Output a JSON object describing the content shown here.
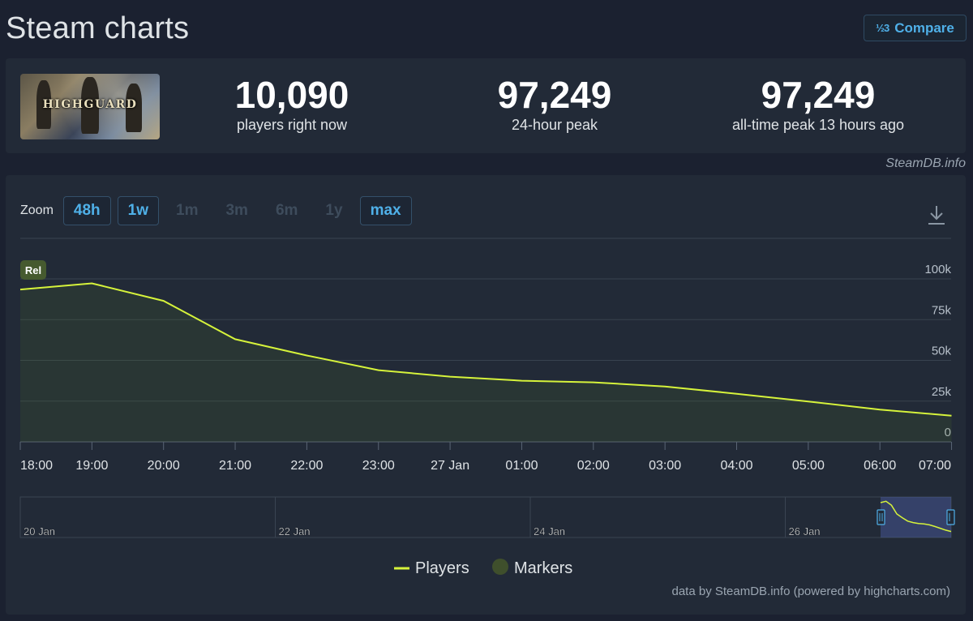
{
  "header": {
    "title": "Steam charts",
    "compare_icon": "1⁄2 3",
    "compare_label": "Compare"
  },
  "game": {
    "logo_text": "HIGHGUARD"
  },
  "stats": [
    {
      "value": "10,090",
      "label": "players right now"
    },
    {
      "value": "97,249",
      "label": "24-hour peak"
    },
    {
      "value": "97,249",
      "label": "all-time peak 13 hours ago"
    }
  ],
  "credit_top": "SteamDB.info",
  "zoom": {
    "label": "Zoom",
    "buttons": [
      {
        "label": "48h",
        "active": true
      },
      {
        "label": "1w",
        "active": true
      },
      {
        "label": "1m",
        "active": false
      },
      {
        "label": "3m",
        "active": false
      },
      {
        "label": "6m",
        "active": false
      },
      {
        "label": "1y",
        "active": false
      },
      {
        "label": "max",
        "active": true
      }
    ]
  },
  "marker": {
    "label": "Rel"
  },
  "chart_data": {
    "type": "area",
    "title": "",
    "xlabel": "",
    "ylabel": "",
    "x_ticks": [
      "18:00",
      "19:00",
      "20:00",
      "21:00",
      "22:00",
      "23:00",
      "27 Jan",
      "01:00",
      "02:00",
      "03:00",
      "04:00",
      "05:00",
      "06:00",
      "07:00"
    ],
    "y_ticks": [
      "0",
      "25k",
      "50k",
      "75k",
      "100k"
    ],
    "ylim": [
      0,
      100000
    ],
    "series": [
      {
        "name": "Players",
        "color": "#d6f33b",
        "x": [
          "18:00",
          "19:00",
          "20:00",
          "21:00",
          "22:00",
          "23:00",
          "27 Jan",
          "01:00",
          "02:00",
          "03:00",
          "04:00",
          "05:00",
          "06:00",
          "07:00"
        ],
        "values": [
          93500,
          97249,
          86500,
          63000,
          53000,
          44000,
          40000,
          37500,
          36500,
          34000,
          29500,
          24800,
          19800,
          16000
        ]
      }
    ],
    "navigator_ticks": [
      "20 Jan",
      "22 Jan",
      "24 Jan",
      "26 Jan"
    ],
    "legend": [
      {
        "name": "Players",
        "color": "#d6f33b"
      },
      {
        "name": "Markers",
        "color": "#3f4f2c"
      }
    ],
    "legend_position": "bottom-center",
    "grid": true
  },
  "credit_bottom": "data by SteamDB.info (powered by highcharts.com)"
}
